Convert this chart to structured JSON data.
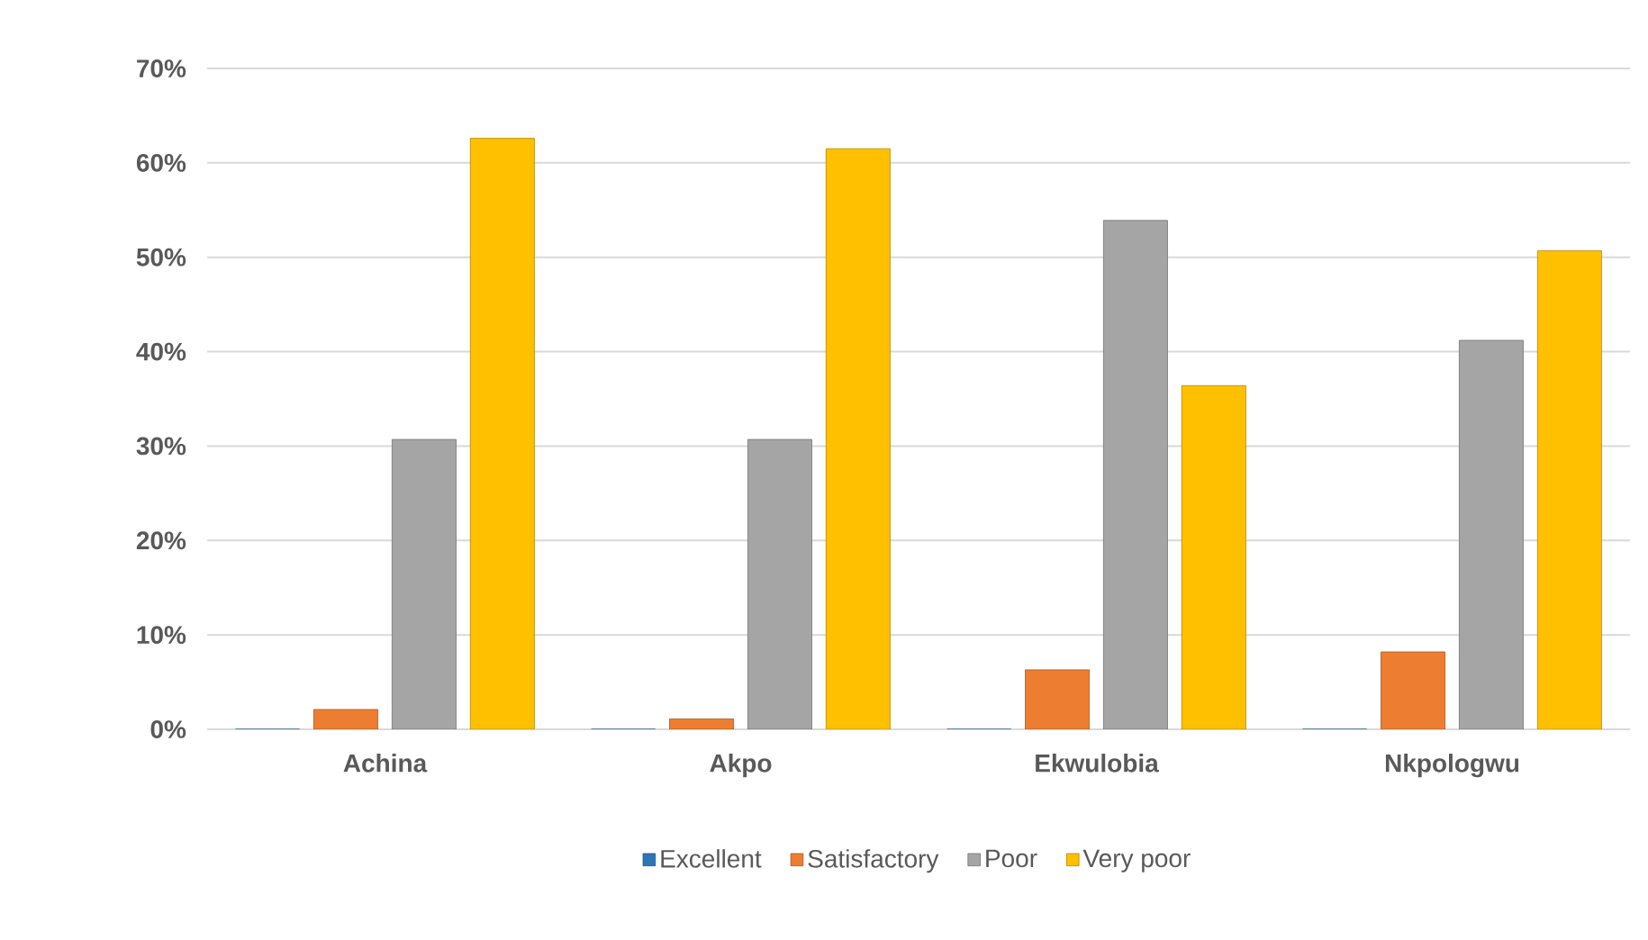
{
  "chart_data": {
    "type": "bar",
    "categories": [
      "Achina",
      "Akpo",
      "Ekwulobia",
      "Nkpologwu"
    ],
    "series": [
      {
        "name": "Excellent",
        "color": "#2e75b6",
        "values": [
          0,
          0,
          0,
          0
        ]
      },
      {
        "name": "Satisfactory",
        "color": "#ed7d31",
        "values": [
          2.1,
          1.1,
          6.3,
          8.2
        ]
      },
      {
        "name": "Poor",
        "color": "#a5a5a5",
        "values": [
          30.7,
          30.7,
          53.9,
          41.2
        ]
      },
      {
        "name": "Very poor",
        "color": "#ffc000",
        "values": [
          62.6,
          61.5,
          36.4,
          50.7
        ]
      }
    ],
    "ylim": [
      0,
      70
    ],
    "yticks": [
      {
        "value": 0,
        "label": "0%"
      },
      {
        "value": 10,
        "label": "10%"
      },
      {
        "value": 20,
        "label": "20%"
      },
      {
        "value": 30,
        "label": "30%"
      },
      {
        "value": 40,
        "label": "40%"
      },
      {
        "value": 50,
        "label": "50%"
      },
      {
        "value": 60,
        "label": "60%"
      },
      {
        "value": 70,
        "label": "70%"
      }
    ],
    "grid": "y",
    "legend": "bottom"
  }
}
